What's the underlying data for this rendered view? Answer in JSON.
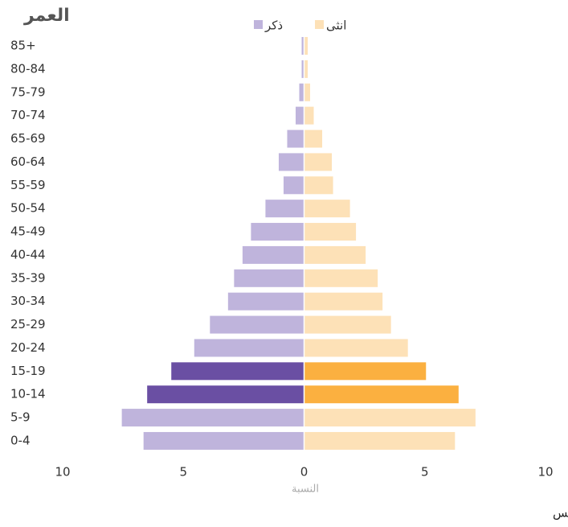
{
  "chart_data": {
    "type": "pyramid",
    "y_label": "العمر",
    "x_label": "النسبة",
    "caption": "التوزيع النسبي لافراد الأسر حسب الفئة العمرية والجنس",
    "categories": [
      "85+",
      "80-84",
      "75-79",
      "70-74",
      "65-69",
      "60-64",
      "55-59",
      "50-54",
      "45-49",
      "40-44",
      "35-39",
      "30-34",
      "25-29",
      "20-24",
      "15-19",
      "10-14",
      "5-9",
      "0-4"
    ],
    "highlight": [
      "15-19",
      "10-14"
    ],
    "series": [
      {
        "name": "ذكر",
        "color": "#bfb4dc",
        "highlight_color": "#6a4fa3",
        "values": [
          -0.1,
          -0.1,
          -0.2,
          -0.35,
          -0.7,
          -1.05,
          -0.85,
          -1.6,
          -2.2,
          -2.55,
          -2.9,
          -3.15,
          -3.9,
          -4.55,
          -5.5,
          -6.5,
          -7.55,
          -6.65
        ]
      },
      {
        "name": "انثى",
        "color": "#fde1b7",
        "highlight_color": "#fbb040",
        "values": [
          0.15,
          0.15,
          0.25,
          0.4,
          0.75,
          1.15,
          1.2,
          1.9,
          2.15,
          2.55,
          3.05,
          3.25,
          3.6,
          4.3,
          5.05,
          6.4,
          7.1,
          6.25
        ]
      }
    ],
    "xlim": [
      -10,
      10
    ],
    "xticks": [
      {
        "value": -10,
        "label": "10"
      },
      {
        "value": -5,
        "label": "5"
      },
      0,
      5,
      10
    ]
  }
}
